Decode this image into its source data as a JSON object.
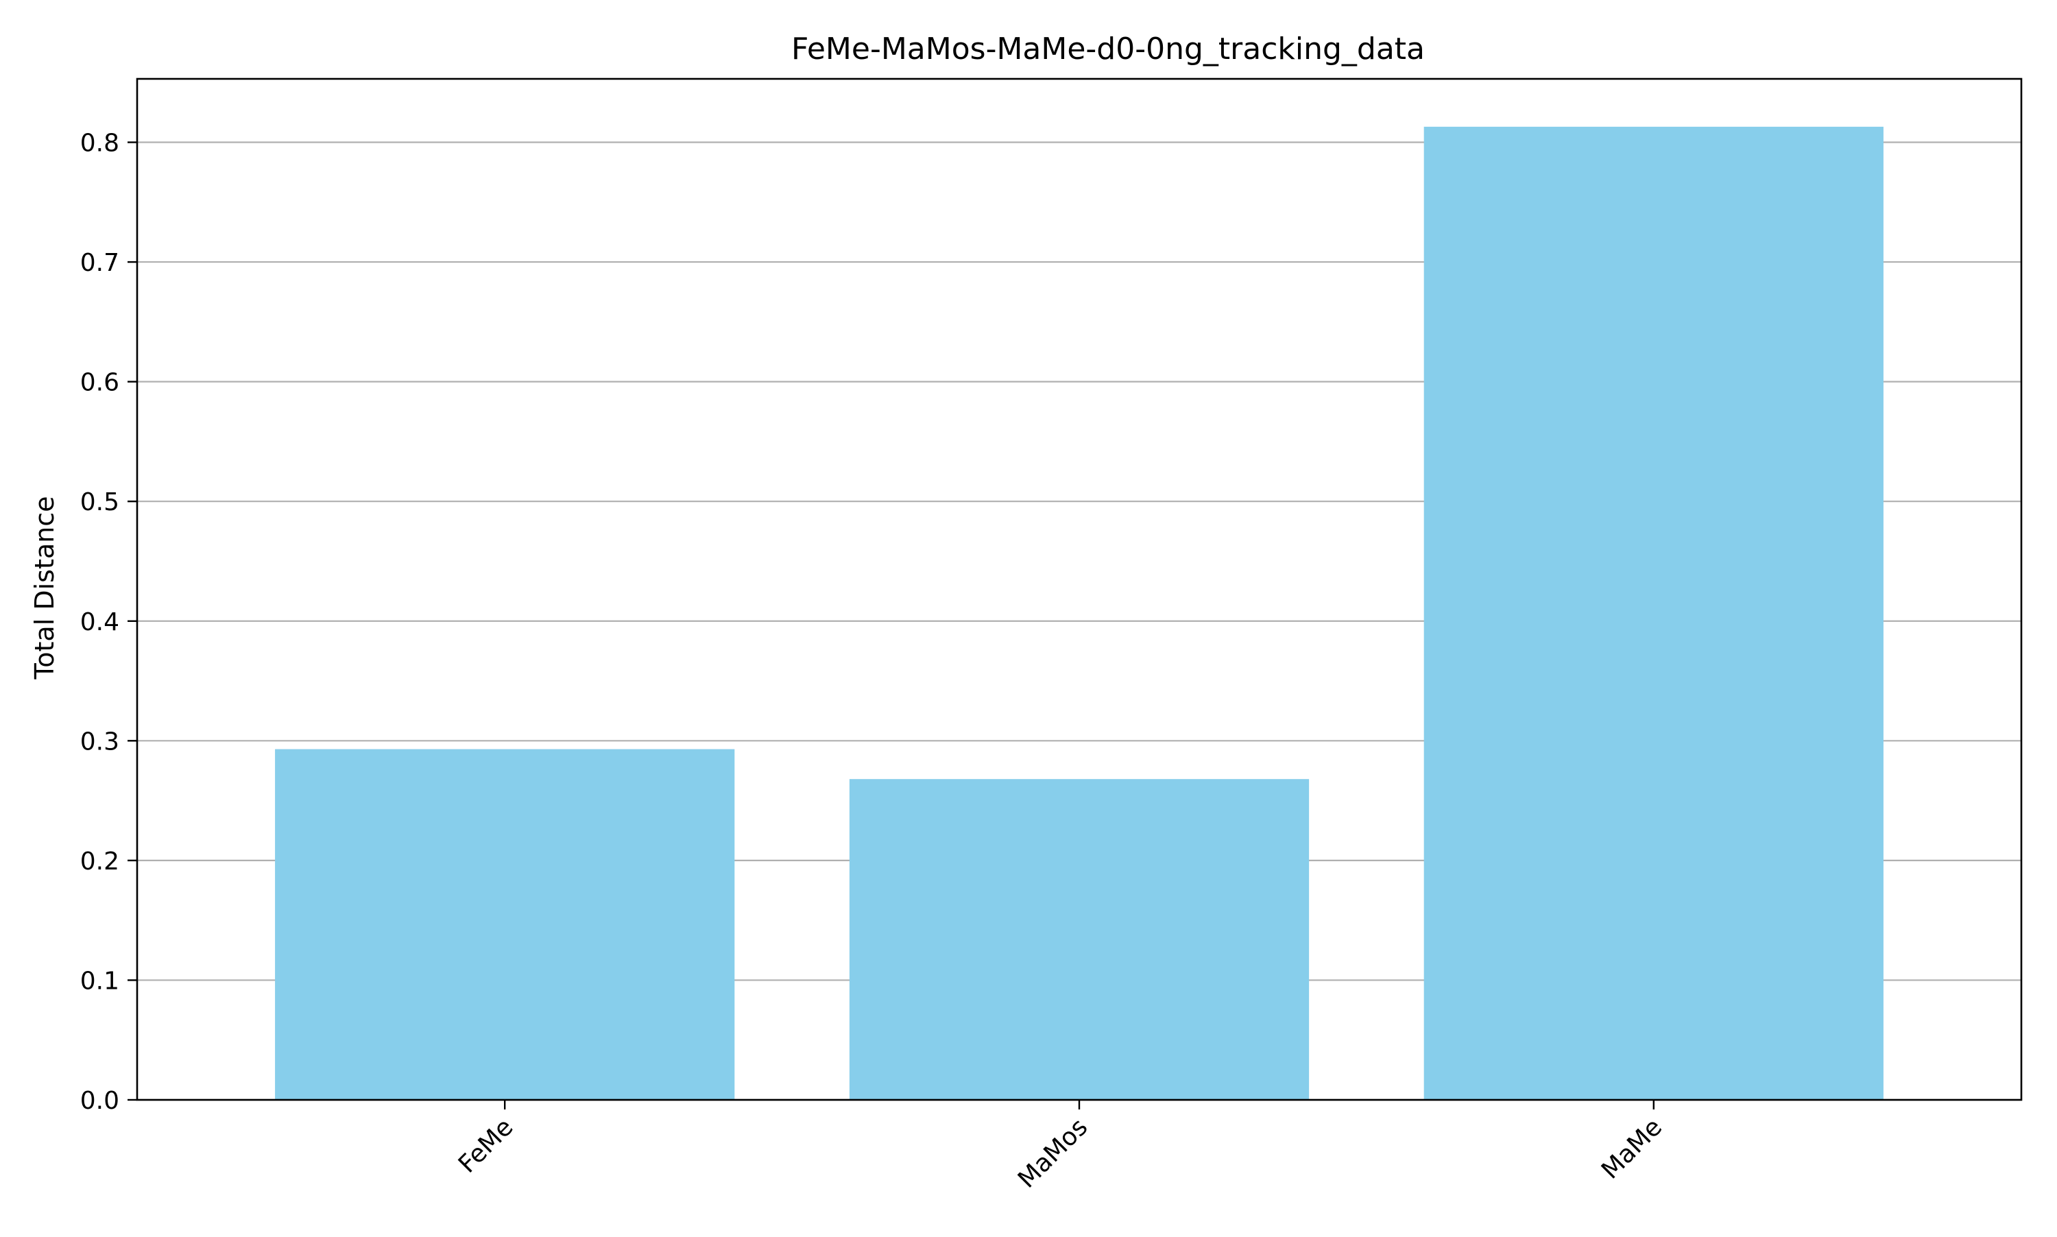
{
  "chart_data": {
    "type": "bar",
    "title": "FeMe-MaMos-MaMe-d0-0ng_tracking_data",
    "xlabel": "",
    "ylabel": "Total Distance",
    "categories": [
      "FeMe",
      "MaMos",
      "MaMe"
    ],
    "values": [
      0.293,
      0.268,
      0.813
    ],
    "ylim": [
      0,
      0.853
    ],
    "yticks": [
      0.0,
      0.1,
      0.2,
      0.3,
      0.4,
      0.5,
      0.6,
      0.7,
      0.8
    ],
    "ytick_labels": [
      "0.0",
      "0.1",
      "0.2",
      "0.3",
      "0.4",
      "0.5",
      "0.6",
      "0.7",
      "0.8"
    ],
    "grid": "y-major",
    "legend": "none",
    "bar_color": "#87CEEB",
    "grid_color": "#b0b0b0",
    "axis_color": "#000000"
  }
}
